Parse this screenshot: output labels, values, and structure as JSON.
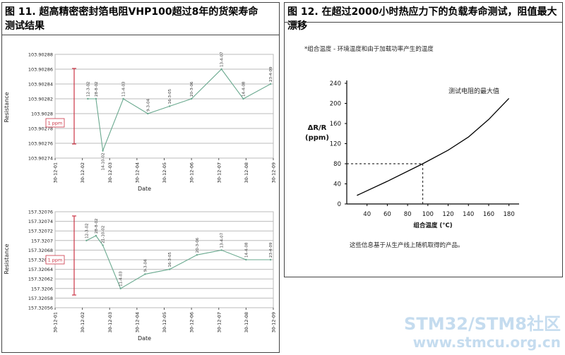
{
  "figure11": {
    "title_line1": "图 11. 超高精密密封箔电阻VHP100超过8年的货架寿命",
    "title_line2": "测试结果"
  },
  "figure12": {
    "title": "图 12. 在超过2000小时热应力下的负载寿命测试，阻值最大漂移",
    "note": "*组合温度 - 环境温度和由于加载功率产生的温度",
    "footnote": "这些信息基于从生产线上随机取得的产品。"
  },
  "watermark": {
    "line1": "STM32/STM8社区",
    "line2": "www.stmcu.org.cn"
  },
  "colors": {
    "series_line": "#6aa98f",
    "ppm_bar": "#cc3344",
    "axis": "#555555",
    "grid": "#bbbbbb",
    "curve": "#000000"
  },
  "chart_data": [
    {
      "type": "line",
      "ylabel": "Resistance",
      "xlabel": "Date",
      "x_categories": [
        "30-12-01",
        "30-12-02",
        "30-12-03",
        "30-12-04",
        "30-12-05",
        "30-12-06",
        "30-12-07",
        "30-12-08",
        "30-12-09"
      ],
      "y_ticks": [
        "103.90288",
        "103.90286",
        "103.90284",
        "103.90282",
        "103.9028",
        "103.90278",
        "103.90276",
        "103.90274"
      ],
      "ylim": [
        103.90274,
        103.90288
      ],
      "grid": true,
      "ppm_bar_label": "1 ppm",
      "series": [
        {
          "x": [
            1.2,
            1.5,
            1.75,
            2.5,
            3.4,
            4.2,
            5.0,
            6.1,
            6.9,
            7.9
          ],
          "y": [
            103.90282,
            103.90282,
            103.90275,
            103.90282,
            103.9028,
            103.90281,
            103.90282,
            103.90286,
            103.90282,
            103.90284
          ],
          "labels": [
            "12-3-02",
            "28-8-02",
            "14-10-02",
            "11-4-03",
            "9-3-04",
            "16-3-05",
            "20-3-06",
            "13-4-07",
            "14-4-08",
            "23-4-09"
          ]
        }
      ]
    },
    {
      "type": "line",
      "ylabel": "Resistance",
      "xlabel": "Date",
      "x_categories": [
        "30-12-01",
        "30-12-02",
        "30-12-03",
        "30-12-04",
        "30-12-05",
        "30-12-06",
        "30-12-07",
        "30-12-08",
        "30-12-09"
      ],
      "y_ticks": [
        "157.32076",
        "157.32074",
        "157.32072",
        "157.3207",
        "157.32068",
        "157.32066",
        "157.32064",
        "157.32062",
        "157.3206",
        "157.32058",
        "157.32056"
      ],
      "ylim": [
        157.32056,
        157.32076
      ],
      "grid": true,
      "ppm_bar_label": "1 ppm",
      "series": [
        {
          "x": [
            1.15,
            1.5,
            1.75,
            2.4,
            3.3,
            4.2,
            5.2,
            6.1,
            7.0,
            7.9
          ],
          "y": [
            157.3207,
            157.32071,
            157.32069,
            157.3206,
            157.32063,
            157.32064,
            157.32067,
            157.32068,
            157.32066,
            157.32066
          ],
          "labels": [
            "12-3-02",
            "28-8-02",
            "21-10-02",
            "11-4-03",
            "9-3-04",
            "16-3-05",
            "20-3-06",
            "13-4-07",
            "14-4-08",
            "23-4-09"
          ]
        }
      ]
    },
    {
      "type": "line",
      "ylabel": "ΔR/R\n(ppm)",
      "xlabel": "组合温度 (°C)",
      "xlim": [
        20,
        190
      ],
      "ylim": [
        0,
        240
      ],
      "x_ticks": [
        40,
        60,
        80,
        100,
        120,
        140,
        160,
        180
      ],
      "y_ticks": [
        0,
        40,
        80,
        120,
        160,
        200,
        240
      ],
      "grid": false,
      "annotation": "测试电阻的最大值",
      "marker": {
        "x": 95,
        "y": 80
      },
      "series": [
        {
          "x": [
            30,
            60,
            95,
            120,
            140,
            160,
            180
          ],
          "y": [
            17,
            45,
            80,
            107,
            133,
            168,
            210
          ]
        }
      ]
    }
  ]
}
